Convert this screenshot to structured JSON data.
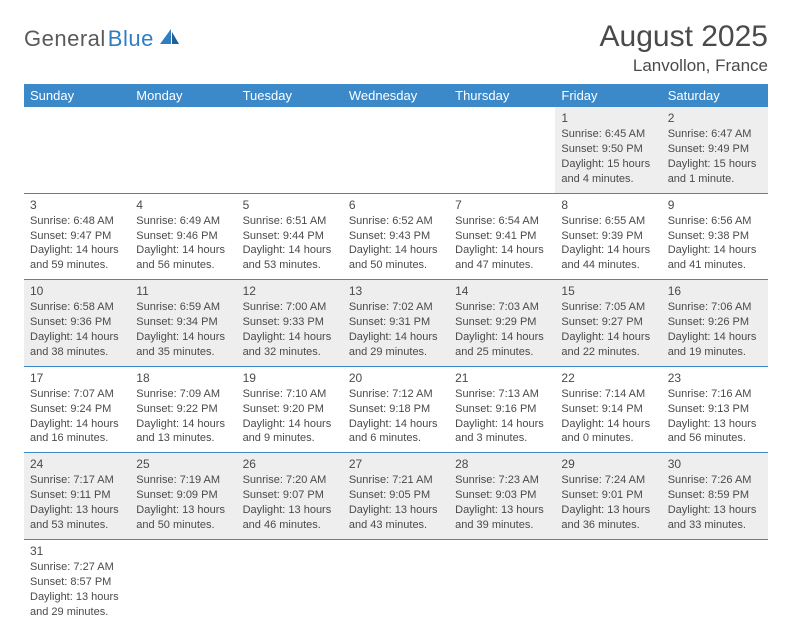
{
  "logo": {
    "part1": "General",
    "part2": "Blue"
  },
  "title": "August 2025",
  "location": "Lanvollon, France",
  "colors": {
    "header_bg": "#3b89c9",
    "header_text": "#ffffff",
    "row_alt_bg": "#eeeeee",
    "row_bg": "#ffffff",
    "border": "#3b89c9",
    "text": "#4a4a4a",
    "logo_gray": "#5a5a5a",
    "logo_blue": "#2f7ec2"
  },
  "weekdays": [
    "Sunday",
    "Monday",
    "Tuesday",
    "Wednesday",
    "Thursday",
    "Friday",
    "Saturday"
  ],
  "weeks": [
    [
      null,
      null,
      null,
      null,
      null,
      {
        "d": "1",
        "sr": "Sunrise: 6:45 AM",
        "ss": "Sunset: 9:50 PM",
        "dl1": "Daylight: 15 hours",
        "dl2": "and 4 minutes."
      },
      {
        "d": "2",
        "sr": "Sunrise: 6:47 AM",
        "ss": "Sunset: 9:49 PM",
        "dl1": "Daylight: 15 hours",
        "dl2": "and 1 minute."
      }
    ],
    [
      {
        "d": "3",
        "sr": "Sunrise: 6:48 AM",
        "ss": "Sunset: 9:47 PM",
        "dl1": "Daylight: 14 hours",
        "dl2": "and 59 minutes."
      },
      {
        "d": "4",
        "sr": "Sunrise: 6:49 AM",
        "ss": "Sunset: 9:46 PM",
        "dl1": "Daylight: 14 hours",
        "dl2": "and 56 minutes."
      },
      {
        "d": "5",
        "sr": "Sunrise: 6:51 AM",
        "ss": "Sunset: 9:44 PM",
        "dl1": "Daylight: 14 hours",
        "dl2": "and 53 minutes."
      },
      {
        "d": "6",
        "sr": "Sunrise: 6:52 AM",
        "ss": "Sunset: 9:43 PM",
        "dl1": "Daylight: 14 hours",
        "dl2": "and 50 minutes."
      },
      {
        "d": "7",
        "sr": "Sunrise: 6:54 AM",
        "ss": "Sunset: 9:41 PM",
        "dl1": "Daylight: 14 hours",
        "dl2": "and 47 minutes."
      },
      {
        "d": "8",
        "sr": "Sunrise: 6:55 AM",
        "ss": "Sunset: 9:39 PM",
        "dl1": "Daylight: 14 hours",
        "dl2": "and 44 minutes."
      },
      {
        "d": "9",
        "sr": "Sunrise: 6:56 AM",
        "ss": "Sunset: 9:38 PM",
        "dl1": "Daylight: 14 hours",
        "dl2": "and 41 minutes."
      }
    ],
    [
      {
        "d": "10",
        "sr": "Sunrise: 6:58 AM",
        "ss": "Sunset: 9:36 PM",
        "dl1": "Daylight: 14 hours",
        "dl2": "and 38 minutes."
      },
      {
        "d": "11",
        "sr": "Sunrise: 6:59 AM",
        "ss": "Sunset: 9:34 PM",
        "dl1": "Daylight: 14 hours",
        "dl2": "and 35 minutes."
      },
      {
        "d": "12",
        "sr": "Sunrise: 7:00 AM",
        "ss": "Sunset: 9:33 PM",
        "dl1": "Daylight: 14 hours",
        "dl2": "and 32 minutes."
      },
      {
        "d": "13",
        "sr": "Sunrise: 7:02 AM",
        "ss": "Sunset: 9:31 PM",
        "dl1": "Daylight: 14 hours",
        "dl2": "and 29 minutes."
      },
      {
        "d": "14",
        "sr": "Sunrise: 7:03 AM",
        "ss": "Sunset: 9:29 PM",
        "dl1": "Daylight: 14 hours",
        "dl2": "and 25 minutes."
      },
      {
        "d": "15",
        "sr": "Sunrise: 7:05 AM",
        "ss": "Sunset: 9:27 PM",
        "dl1": "Daylight: 14 hours",
        "dl2": "and 22 minutes."
      },
      {
        "d": "16",
        "sr": "Sunrise: 7:06 AM",
        "ss": "Sunset: 9:26 PM",
        "dl1": "Daylight: 14 hours",
        "dl2": "and 19 minutes."
      }
    ],
    [
      {
        "d": "17",
        "sr": "Sunrise: 7:07 AM",
        "ss": "Sunset: 9:24 PM",
        "dl1": "Daylight: 14 hours",
        "dl2": "and 16 minutes."
      },
      {
        "d": "18",
        "sr": "Sunrise: 7:09 AM",
        "ss": "Sunset: 9:22 PM",
        "dl1": "Daylight: 14 hours",
        "dl2": "and 13 minutes."
      },
      {
        "d": "19",
        "sr": "Sunrise: 7:10 AM",
        "ss": "Sunset: 9:20 PM",
        "dl1": "Daylight: 14 hours",
        "dl2": "and 9 minutes."
      },
      {
        "d": "20",
        "sr": "Sunrise: 7:12 AM",
        "ss": "Sunset: 9:18 PM",
        "dl1": "Daylight: 14 hours",
        "dl2": "and 6 minutes."
      },
      {
        "d": "21",
        "sr": "Sunrise: 7:13 AM",
        "ss": "Sunset: 9:16 PM",
        "dl1": "Daylight: 14 hours",
        "dl2": "and 3 minutes."
      },
      {
        "d": "22",
        "sr": "Sunrise: 7:14 AM",
        "ss": "Sunset: 9:14 PM",
        "dl1": "Daylight: 14 hours",
        "dl2": "and 0 minutes."
      },
      {
        "d": "23",
        "sr": "Sunrise: 7:16 AM",
        "ss": "Sunset: 9:13 PM",
        "dl1": "Daylight: 13 hours",
        "dl2": "and 56 minutes."
      }
    ],
    [
      {
        "d": "24",
        "sr": "Sunrise: 7:17 AM",
        "ss": "Sunset: 9:11 PM",
        "dl1": "Daylight: 13 hours",
        "dl2": "and 53 minutes."
      },
      {
        "d": "25",
        "sr": "Sunrise: 7:19 AM",
        "ss": "Sunset: 9:09 PM",
        "dl1": "Daylight: 13 hours",
        "dl2": "and 50 minutes."
      },
      {
        "d": "26",
        "sr": "Sunrise: 7:20 AM",
        "ss": "Sunset: 9:07 PM",
        "dl1": "Daylight: 13 hours",
        "dl2": "and 46 minutes."
      },
      {
        "d": "27",
        "sr": "Sunrise: 7:21 AM",
        "ss": "Sunset: 9:05 PM",
        "dl1": "Daylight: 13 hours",
        "dl2": "and 43 minutes."
      },
      {
        "d": "28",
        "sr": "Sunrise: 7:23 AM",
        "ss": "Sunset: 9:03 PM",
        "dl1": "Daylight: 13 hours",
        "dl2": "and 39 minutes."
      },
      {
        "d": "29",
        "sr": "Sunrise: 7:24 AM",
        "ss": "Sunset: 9:01 PM",
        "dl1": "Daylight: 13 hours",
        "dl2": "and 36 minutes."
      },
      {
        "d": "30",
        "sr": "Sunrise: 7:26 AM",
        "ss": "Sunset: 8:59 PM",
        "dl1": "Daylight: 13 hours",
        "dl2": "and 33 minutes."
      }
    ],
    [
      {
        "d": "31",
        "sr": "Sunrise: 7:27 AM",
        "ss": "Sunset: 8:57 PM",
        "dl1": "Daylight: 13 hours",
        "dl2": "and 29 minutes."
      },
      null,
      null,
      null,
      null,
      null,
      null
    ]
  ]
}
